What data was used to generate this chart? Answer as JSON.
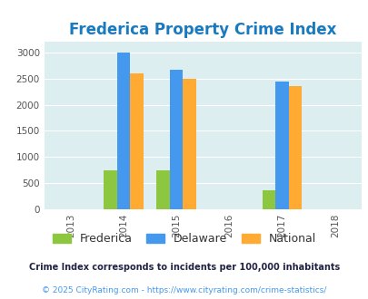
{
  "title": "Frederica Property Crime Index",
  "title_color": "#1a7abf",
  "years": [
    2013,
    2014,
    2015,
    2016,
    2017,
    2018
  ],
  "bar_years": [
    2014,
    2015,
    2017
  ],
  "frederica": [
    750,
    750,
    370
  ],
  "delaware": [
    3000,
    2670,
    2450
  ],
  "national": [
    2600,
    2500,
    2360
  ],
  "frederica_color": "#8dc63f",
  "delaware_color": "#4499ee",
  "national_color": "#ffaa33",
  "bg_color": "#ddeef0",
  "ylim": [
    0,
    3200
  ],
  "yticks": [
    0,
    500,
    1000,
    1500,
    2000,
    2500,
    3000
  ],
  "bar_width": 0.25,
  "legend_labels": [
    "Frederica",
    "Delaware",
    "National"
  ],
  "footnote1": "Crime Index corresponds to incidents per 100,000 inhabitants",
  "footnote2": "© 2025 CityRating.com - https://www.cityrating.com/crime-statistics/",
  "footnote1_color": "#222244",
  "footnote2_color": "#4499ee"
}
